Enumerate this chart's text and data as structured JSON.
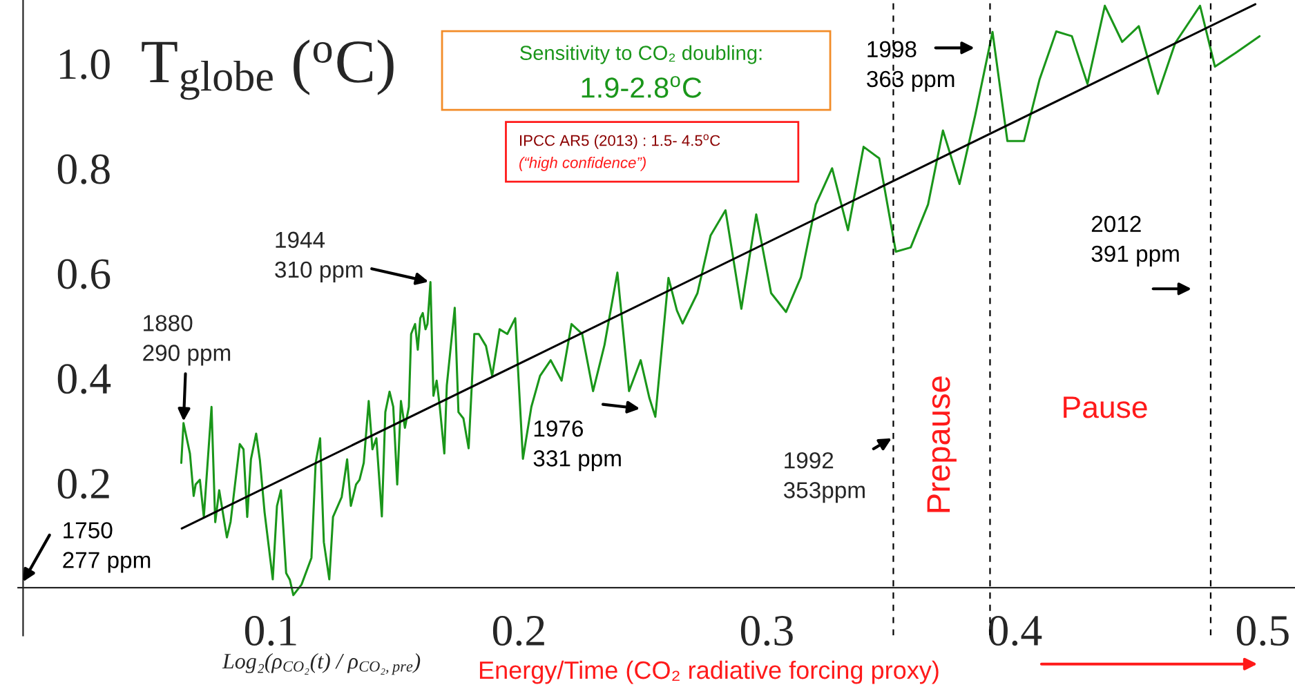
{
  "chart_data": {
    "type": "line",
    "xlabel": "Log₂(ρ$_{CO₂}$(t) / ρ$_{CO₂,pre}$)",
    "ylabel": "T$_{globe}$ ($^{o}$C)",
    "xlim": [
      -0.002,
      0.513
    ],
    "ylim": [
      -0.091,
      1.121
    ],
    "xticks": [
      0.1,
      0.2,
      0.3,
      0.4,
      0.5
    ],
    "yticks": [
      0.2,
      0.4,
      0.6,
      0.8,
      {
        "value": 1.0,
        "label": "1.0"
      }
    ],
    "grid": false,
    "series": [
      {
        "color": "#1a961a",
        "x": [
          0.0638,
          0.0647,
          0.066,
          0.0673,
          0.0688,
          0.0696,
          0.0713,
          0.0729,
          0.076,
          0.0775,
          0.0791,
          0.0822,
          0.0837,
          0.0874,
          0.0889,
          0.0904,
          0.0919,
          0.094,
          0.0955,
          0.0974,
          0.1007,
          0.1024,
          0.104,
          0.1061,
          0.1076,
          0.109,
          0.1123,
          0.1163,
          0.118,
          0.1198,
          0.1213,
          0.1235,
          0.125,
          0.1285,
          0.1307,
          0.1322,
          0.1343,
          0.1357,
          0.1374,
          0.1394,
          0.1409,
          0.1425,
          0.1447,
          0.1461,
          0.1478,
          0.1493,
          0.1509,
          0.1524,
          0.154,
          0.1556,
          0.1565,
          0.1581,
          0.1592,
          0.1602,
          0.1612,
          0.1623,
          0.1631,
          0.1643,
          0.1655,
          0.1668,
          0.168,
          0.1699,
          0.1709,
          0.1741,
          0.1756,
          0.1776,
          0.1797,
          0.182,
          0.1838,
          0.1867,
          0.1892,
          0.1922,
          0.1953,
          0.1985,
          0.2016,
          0.205,
          0.2085,
          0.2128,
          0.2172,
          0.2212,
          0.2255,
          0.2299,
          0.2345,
          0.2397,
          0.2444,
          0.2491,
          0.2526,
          0.255,
          0.2603,
          0.2637,
          0.266,
          0.272,
          0.2773,
          0.2833,
          0.2897,
          0.2957,
          0.3017,
          0.3077,
          0.3137,
          0.3197,
          0.3263,
          0.3327,
          0.339,
          0.3453,
          0.352,
          0.358,
          0.365,
          0.371,
          0.3777,
          0.384,
          0.391,
          0.397,
          0.4037,
          0.41,
          0.4167,
          0.423,
          0.4293,
          0.4363,
          0.4433,
          0.45,
          0.4577,
          0.4647,
          0.4747,
          0.4807,
          0.489,
          0.4987
        ],
        "values": [
          0.238,
          0.314,
          0.285,
          0.256,
          0.175,
          0.197,
          0.206,
          0.135,
          0.345,
          0.125,
          0.186,
          0.096,
          0.126,
          0.274,
          0.264,
          0.135,
          0.245,
          0.294,
          0.244,
          0.144,
          0.016,
          0.156,
          0.186,
          0.028,
          0.015,
          -0.014,
          0.006,
          0.057,
          0.238,
          0.285,
          0.087,
          0.016,
          0.135,
          0.173,
          0.245,
          0.156,
          0.197,
          0.206,
          0.238,
          0.356,
          0.264,
          0.285,
          0.136,
          0.335,
          0.374,
          0.345,
          0.197,
          0.356,
          0.305,
          0.345,
          0.484,
          0.503,
          0.454,
          0.514,
          0.524,
          0.493,
          0.503,
          0.583,
          0.366,
          0.395,
          0.348,
          0.256,
          0.386,
          0.534,
          0.335,
          0.323,
          0.266,
          0.484,
          0.484,
          0.461,
          0.404,
          0.493,
          0.484,
          0.514,
          0.246,
          0.345,
          0.404,
          0.434,
          0.395,
          0.503,
          0.484,
          0.375,
          0.463,
          0.601,
          0.375,
          0.434,
          0.362,
          0.326,
          0.591,
          0.529,
          0.504,
          0.562,
          0.672,
          0.72,
          0.532,
          0.712,
          0.562,
          0.526,
          0.592,
          0.731,
          0.8,
          0.682,
          0.841,
          0.819,
          0.641,
          0.649,
          0.731,
          0.872,
          0.77,
          0.901,
          1.06,
          0.852,
          0.852,
          0.97,
          1.061,
          1.052,
          0.961,
          1.11,
          1.041,
          1.071,
          0.942,
          1.039,
          1.11,
          0.994,
          1.02,
          1.052
        ]
      },
      {
        "color": "#000000",
        "x": [
          0.064,
          0.497
        ],
        "values": [
          0.113,
          1.113
        ]
      }
    ],
    "ref_lines": [
      {
        "axis": "x",
        "value": 0.351,
        "color": "#000000",
        "line_style": "dashed"
      },
      {
        "axis": "x",
        "value": 0.39,
        "color": "#000000",
        "line_style": "dashed"
      },
      {
        "axis": "x",
        "value": 0.479,
        "color": "#000000",
        "line_style": "dashed"
      }
    ],
    "annotations": [
      "1750\n277 ppm",
      {
        "text": "1880\n290 ppm",
        "x": 0.0647,
        "y": 0.314
      },
      {
        "text": "1944\n310 ppm",
        "x": 0.1643,
        "y": 0.583
      },
      "1976\n331 ppm",
      {
        "text": "1992\n353ppm",
        "x": 0.351,
        "y": 0.287
      },
      "1998\n363 ppm",
      "2012\n391 ppm",
      "Prepause",
      "Pause",
      "Sensitivity to CO₂ doubling:",
      "1.9-2.8$^{o}$C",
      "IPCC AR5 (2013) : 1.5- 4.5$^{o}$C",
      "(“high confidence”)",
      "Energy/Time (CO₂ radiative forcing proxy)"
    ]
  }
}
